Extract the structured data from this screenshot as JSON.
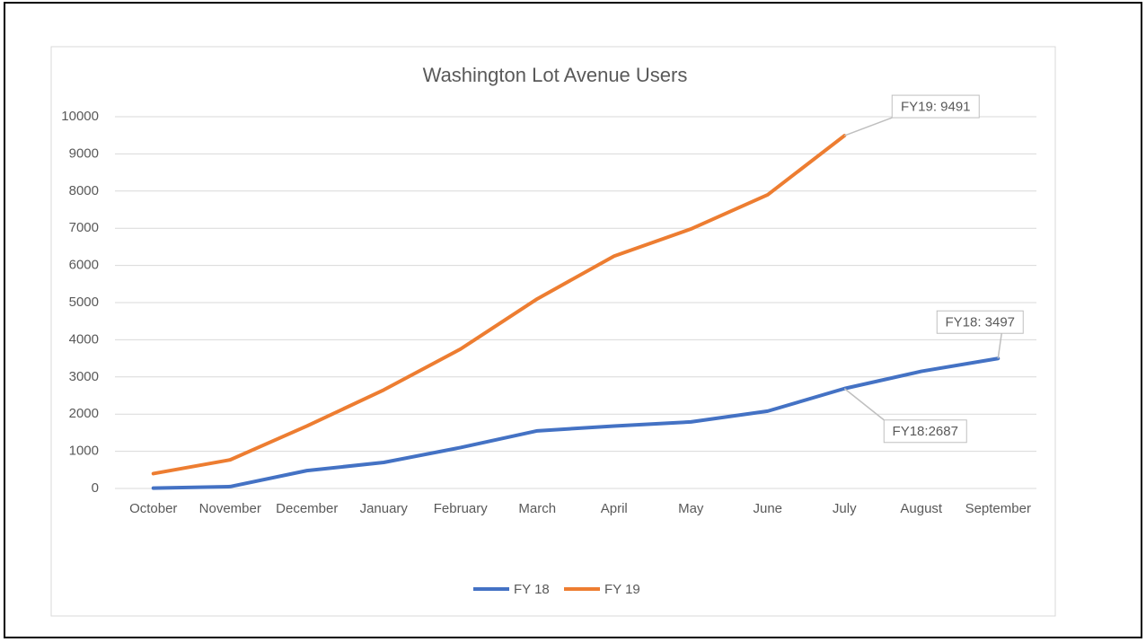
{
  "chart_data": {
    "type": "line",
    "title": "Washington Lot Avenue Users",
    "categories": [
      "October",
      "November",
      "December",
      "January",
      "February",
      "March",
      "April",
      "May",
      "June",
      "July",
      "August",
      "September"
    ],
    "series": [
      {
        "name": "FY 18",
        "color": "#4472c4",
        "values": [
          10,
          50,
          480,
          700,
          1100,
          1550,
          1680,
          1790,
          2080,
          2687,
          3150,
          3497
        ],
        "value_labels": [
          null,
          null,
          null,
          null,
          null,
          null,
          null,
          null,
          null,
          "FY18:2687",
          null,
          "FY18: 3497"
        ]
      },
      {
        "name": "FY 19",
        "color": "#ed7d31",
        "values": [
          400,
          770,
          1680,
          2650,
          3750,
          5100,
          6250,
          6980,
          7900,
          9491,
          null,
          null
        ],
        "value_labels": [
          null,
          null,
          null,
          null,
          null,
          null,
          null,
          null,
          null,
          "FY19: 9491",
          null,
          null
        ]
      }
    ],
    "ylim": [
      0,
      10000
    ],
    "yticks": [
      0,
      1000,
      2000,
      3000,
      4000,
      5000,
      6000,
      7000,
      8000,
      9000,
      10000
    ],
    "grid": true,
    "legend": "bottom"
  }
}
